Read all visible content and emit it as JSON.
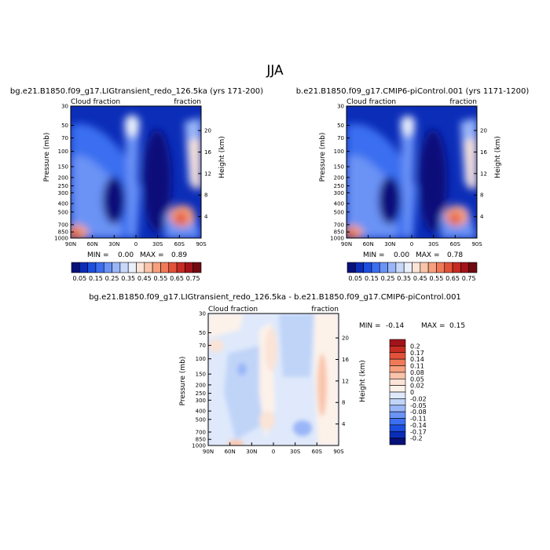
{
  "page_title": "JJA",
  "chart_data": [
    {
      "type": "heatmap",
      "title": "bg.e21.B1850.f09_g17.LIGtransient_redo_126.5ka (yrs 171-200)",
      "left_label": "Cloud fraction",
      "right_label": "fraction",
      "ylabel": "Pressure (mb)",
      "ylabel_right": "Height (km)",
      "x_ticks": [
        "90N",
        "60N",
        "30N",
        "0",
        "30S",
        "60S",
        "90S"
      ],
      "y_ticks": [
        "1000",
        "850",
        "700",
        "500",
        "400",
        "300",
        "250",
        "200",
        "150",
        "100",
        "70",
        "50",
        "30"
      ],
      "y_ticks_right": [
        "4",
        "8",
        "12",
        "16",
        "20"
      ],
      "min_label": "MIN =",
      "min": "0.00",
      "max_label": "MAX =",
      "max": "0.89"
    },
    {
      "type": "heatmap",
      "title": "b.e21.B1850.f09_g17.CMIP6-piControl.001 (yrs 1171-1200)",
      "left_label": "Cloud fraction",
      "right_label": "fraction",
      "ylabel": "Pressure (mb)",
      "ylabel_right": "Height (km)",
      "x_ticks": [
        "90N",
        "60N",
        "30N",
        "0",
        "30S",
        "60S",
        "90S"
      ],
      "y_ticks": [
        "1000",
        "850",
        "700",
        "500",
        "400",
        "300",
        "250",
        "200",
        "150",
        "100",
        "70",
        "50",
        "30"
      ],
      "y_ticks_right": [
        "4",
        "8",
        "12",
        "16",
        "20"
      ],
      "min_label": "MIN =",
      "min": "0.00",
      "max_label": "MAX =",
      "max": "0.78"
    },
    {
      "type": "heatmap",
      "title": "bg.e21.B1850.f09_g17.LIGtransient_redo_126.5ka - b.e21.B1850.f09_g17.CMIP6-piControl.001",
      "left_label": "Cloud fraction",
      "right_label": "fraction",
      "ylabel": "Pressure (mb)",
      "ylabel_right": "Height (km)",
      "x_ticks": [
        "90N",
        "60N",
        "30N",
        "0",
        "30S",
        "60S",
        "90S"
      ],
      "y_ticks": [
        "1000",
        "850",
        "700",
        "500",
        "400",
        "300",
        "250",
        "200",
        "150",
        "100",
        "70",
        "50",
        "30"
      ],
      "y_ticks_right": [
        "4",
        "8",
        "12",
        "16",
        "20"
      ],
      "min_label": "MIN =",
      "min": "-0.14",
      "max_label": "MAX =",
      "max": "0.15"
    }
  ],
  "colorbar_top": {
    "labels": [
      "0.05",
      "0.15",
      "0.25",
      "0.35",
      "0.45",
      "0.55",
      "0.65",
      "0.75"
    ],
    "colors": [
      "#08107a",
      "#0b2db8",
      "#1c4fe0",
      "#3b6ef0",
      "#6a93f5",
      "#9ab6f8",
      "#c8d8f8",
      "#eaf0fb",
      "#fbe3d6",
      "#f9c4aa",
      "#f7a07e",
      "#f07a58",
      "#e2523a",
      "#c72c22",
      "#a3131a",
      "#700a10"
    ]
  },
  "colorbar_diff": {
    "labels": [
      "0.2",
      "0.17",
      "0.14",
      "0.11",
      "0.08",
      "0.05",
      "0.02",
      "0",
      "-0.02",
      "-0.05",
      "-0.08",
      "-0.11",
      "-0.14",
      "-0.17",
      "-0.2"
    ],
    "colors": [
      "#a3131a",
      "#c72c22",
      "#e2523a",
      "#f07a58",
      "#f7a07e",
      "#f9c4aa",
      "#fbe3d6",
      "#fdf2ea",
      "#dfe9fb",
      "#c0d4f8",
      "#9ab6f8",
      "#6a93f5",
      "#3b6ef0",
      "#1c4fe0",
      "#0b2db8",
      "#08107a"
    ]
  }
}
